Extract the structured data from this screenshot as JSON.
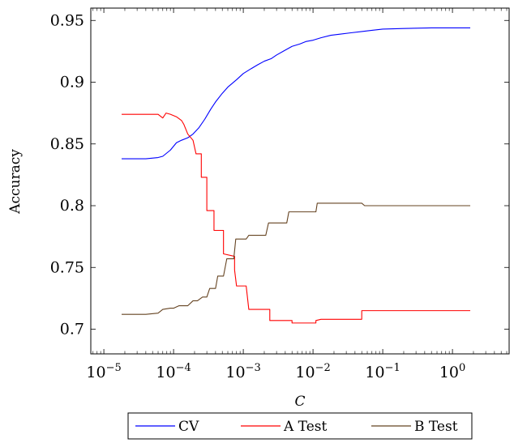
{
  "chart_data": {
    "type": "line",
    "xlabel": "C",
    "ylabel": "Accuracy",
    "xscale": "log",
    "xlim": [
      6.5e-06,
      6.5
    ],
    "ylim": [
      0.68,
      0.96
    ],
    "x_ticks": [
      1e-05,
      0.0001,
      0.001,
      0.01,
      0.1,
      1
    ],
    "x_tick_labels": [
      {
        "base": "10",
        "exp": "−5"
      },
      {
        "base": "10",
        "exp": "−4"
      },
      {
        "base": "10",
        "exp": "−3"
      },
      {
        "base": "10",
        "exp": "−2"
      },
      {
        "base": "10",
        "exp": "−1"
      },
      {
        "base": "10",
        "exp": "0"
      }
    ],
    "y_ticks": [
      0.7,
      0.75,
      0.8,
      0.85,
      0.9,
      0.95
    ],
    "y_tick_labels": [
      "0.7",
      "0.75",
      "0.8",
      "0.85",
      "0.9",
      "0.95"
    ],
    "grid": false,
    "legend_position": "bottom-center",
    "series": [
      {
        "name": "CV",
        "color": "#0000ff",
        "points": [
          [
            1.8e-05,
            0.838
          ],
          [
            4e-05,
            0.838
          ],
          [
            6e-05,
            0.839
          ],
          [
            7e-05,
            0.84
          ],
          [
            9e-05,
            0.845
          ],
          [
            0.00011,
            0.851
          ],
          [
            0.00013,
            0.853
          ],
          [
            0.00016,
            0.855
          ],
          [
            0.00019,
            0.858
          ],
          [
            0.00023,
            0.863
          ],
          [
            0.00028,
            0.87
          ],
          [
            0.00034,
            0.878
          ],
          [
            0.0004,
            0.884
          ],
          [
            0.0005,
            0.891
          ],
          [
            0.0006,
            0.896
          ],
          [
            0.0008,
            0.902
          ],
          [
            0.001,
            0.907
          ],
          [
            0.0013,
            0.911
          ],
          [
            0.0016,
            0.914
          ],
          [
            0.002,
            0.917
          ],
          [
            0.0025,
            0.919
          ],
          [
            0.003,
            0.922
          ],
          [
            0.004,
            0.926
          ],
          [
            0.005,
            0.929
          ],
          [
            0.0065,
            0.931
          ],
          [
            0.008,
            0.933
          ],
          [
            0.01,
            0.934
          ],
          [
            0.013,
            0.936
          ],
          [
            0.018,
            0.938
          ],
          [
            0.025,
            0.939
          ],
          [
            0.035,
            0.94
          ],
          [
            0.05,
            0.941
          ],
          [
            0.07,
            0.942
          ],
          [
            0.1,
            0.943
          ],
          [
            0.2,
            0.9435
          ],
          [
            0.5,
            0.944
          ],
          [
            1.8,
            0.944
          ]
        ]
      },
      {
        "name": "A Test",
        "color": "#ff0000",
        "points": [
          [
            1.8e-05,
            0.874
          ],
          [
            6e-05,
            0.874
          ],
          [
            7e-05,
            0.871
          ],
          [
            7.8e-05,
            0.875
          ],
          [
            9e-05,
            0.874
          ],
          [
            0.00011,
            0.872
          ],
          [
            0.00013,
            0.869
          ],
          [
            0.00014,
            0.866
          ],
          [
            0.00016,
            0.858
          ],
          [
            0.00019,
            0.853
          ],
          [
            0.00021,
            0.842
          ],
          [
            0.00025,
            0.842
          ],
          [
            0.00025,
            0.823
          ],
          [
            0.0003,
            0.823
          ],
          [
            0.0003,
            0.796
          ],
          [
            0.00038,
            0.796
          ],
          [
            0.00038,
            0.78
          ],
          [
            0.00052,
            0.78
          ],
          [
            0.00052,
            0.761
          ],
          [
            0.00075,
            0.759
          ],
          [
            0.00075,
            0.748
          ],
          [
            0.0008,
            0.735
          ],
          [
            0.0011,
            0.735
          ],
          [
            0.0012,
            0.716
          ],
          [
            0.0024,
            0.716
          ],
          [
            0.0024,
            0.707
          ],
          [
            0.005,
            0.707
          ],
          [
            0.005,
            0.705
          ],
          [
            0.011,
            0.705
          ],
          [
            0.011,
            0.707
          ],
          [
            0.013,
            0.708
          ],
          [
            0.05,
            0.708
          ],
          [
            0.05,
            0.715
          ],
          [
            1.8,
            0.715
          ]
        ]
      },
      {
        "name": "B Test",
        "color": "#654321",
        "points": [
          [
            1.8e-05,
            0.712
          ],
          [
            4e-05,
            0.712
          ],
          [
            6e-05,
            0.713
          ],
          [
            7e-05,
            0.716
          ],
          [
            9e-05,
            0.717
          ],
          [
            0.0001,
            0.717
          ],
          [
            0.00012,
            0.719
          ],
          [
            0.00016,
            0.719
          ],
          [
            0.00019,
            0.723
          ],
          [
            0.00022,
            0.723
          ],
          [
            0.00026,
            0.726
          ],
          [
            0.0003,
            0.726
          ],
          [
            0.00033,
            0.733
          ],
          [
            0.0004,
            0.733
          ],
          [
            0.00043,
            0.743
          ],
          [
            0.00052,
            0.743
          ],
          [
            0.00058,
            0.757
          ],
          [
            0.00073,
            0.757
          ],
          [
            0.00078,
            0.773
          ],
          [
            0.0011,
            0.773
          ],
          [
            0.0012,
            0.776
          ],
          [
            0.0021,
            0.776
          ],
          [
            0.0023,
            0.786
          ],
          [
            0.0042,
            0.786
          ],
          [
            0.0045,
            0.795
          ],
          [
            0.011,
            0.795
          ],
          [
            0.0115,
            0.802
          ],
          [
            0.05,
            0.802
          ],
          [
            0.055,
            0.8
          ],
          [
            1.8,
            0.8
          ]
        ]
      }
    ]
  }
}
